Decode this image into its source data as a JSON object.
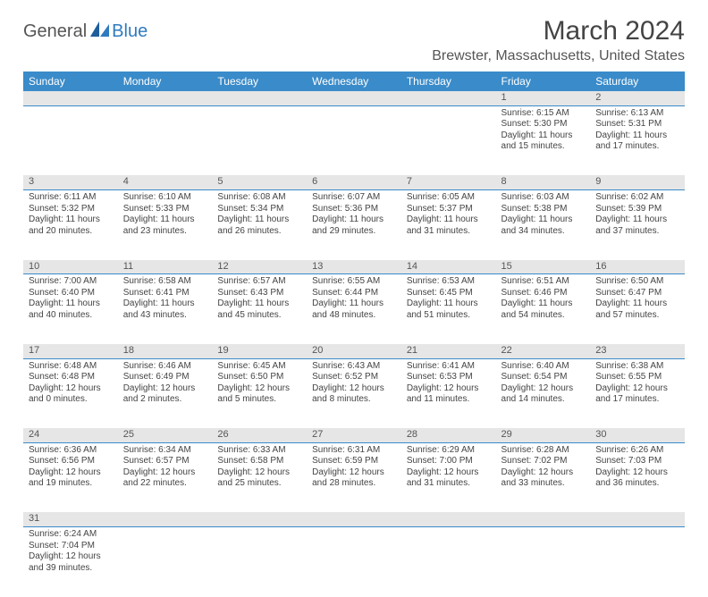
{
  "logo": {
    "general": "General",
    "blue": "Blue"
  },
  "title": "March 2024",
  "location": "Brewster, Massachusetts, United States",
  "colors": {
    "header_bg": "#3a8bc9",
    "header_text": "#ffffff",
    "daynum_bg": "#e6e6e6",
    "border": "#3a8bc9",
    "logo_blue": "#2f7bbf",
    "text": "#444444"
  },
  "day_headers": [
    "Sunday",
    "Monday",
    "Tuesday",
    "Wednesday",
    "Thursday",
    "Friday",
    "Saturday"
  ],
  "weeks": [
    [
      null,
      null,
      null,
      null,
      null,
      {
        "n": "1",
        "sr": "Sunrise: 6:15 AM",
        "ss": "Sunset: 5:30 PM",
        "dl": "Daylight: 11 hours and 15 minutes."
      },
      {
        "n": "2",
        "sr": "Sunrise: 6:13 AM",
        "ss": "Sunset: 5:31 PM",
        "dl": "Daylight: 11 hours and 17 minutes."
      }
    ],
    [
      {
        "n": "3",
        "sr": "Sunrise: 6:11 AM",
        "ss": "Sunset: 5:32 PM",
        "dl": "Daylight: 11 hours and 20 minutes."
      },
      {
        "n": "4",
        "sr": "Sunrise: 6:10 AM",
        "ss": "Sunset: 5:33 PM",
        "dl": "Daylight: 11 hours and 23 minutes."
      },
      {
        "n": "5",
        "sr": "Sunrise: 6:08 AM",
        "ss": "Sunset: 5:34 PM",
        "dl": "Daylight: 11 hours and 26 minutes."
      },
      {
        "n": "6",
        "sr": "Sunrise: 6:07 AM",
        "ss": "Sunset: 5:36 PM",
        "dl": "Daylight: 11 hours and 29 minutes."
      },
      {
        "n": "7",
        "sr": "Sunrise: 6:05 AM",
        "ss": "Sunset: 5:37 PM",
        "dl": "Daylight: 11 hours and 31 minutes."
      },
      {
        "n": "8",
        "sr": "Sunrise: 6:03 AM",
        "ss": "Sunset: 5:38 PM",
        "dl": "Daylight: 11 hours and 34 minutes."
      },
      {
        "n": "9",
        "sr": "Sunrise: 6:02 AM",
        "ss": "Sunset: 5:39 PM",
        "dl": "Daylight: 11 hours and 37 minutes."
      }
    ],
    [
      {
        "n": "10",
        "sr": "Sunrise: 7:00 AM",
        "ss": "Sunset: 6:40 PM",
        "dl": "Daylight: 11 hours and 40 minutes."
      },
      {
        "n": "11",
        "sr": "Sunrise: 6:58 AM",
        "ss": "Sunset: 6:41 PM",
        "dl": "Daylight: 11 hours and 43 minutes."
      },
      {
        "n": "12",
        "sr": "Sunrise: 6:57 AM",
        "ss": "Sunset: 6:43 PM",
        "dl": "Daylight: 11 hours and 45 minutes."
      },
      {
        "n": "13",
        "sr": "Sunrise: 6:55 AM",
        "ss": "Sunset: 6:44 PM",
        "dl": "Daylight: 11 hours and 48 minutes."
      },
      {
        "n": "14",
        "sr": "Sunrise: 6:53 AM",
        "ss": "Sunset: 6:45 PM",
        "dl": "Daylight: 11 hours and 51 minutes."
      },
      {
        "n": "15",
        "sr": "Sunrise: 6:51 AM",
        "ss": "Sunset: 6:46 PM",
        "dl": "Daylight: 11 hours and 54 minutes."
      },
      {
        "n": "16",
        "sr": "Sunrise: 6:50 AM",
        "ss": "Sunset: 6:47 PM",
        "dl": "Daylight: 11 hours and 57 minutes."
      }
    ],
    [
      {
        "n": "17",
        "sr": "Sunrise: 6:48 AM",
        "ss": "Sunset: 6:48 PM",
        "dl": "Daylight: 12 hours and 0 minutes."
      },
      {
        "n": "18",
        "sr": "Sunrise: 6:46 AM",
        "ss": "Sunset: 6:49 PM",
        "dl": "Daylight: 12 hours and 2 minutes."
      },
      {
        "n": "19",
        "sr": "Sunrise: 6:45 AM",
        "ss": "Sunset: 6:50 PM",
        "dl": "Daylight: 12 hours and 5 minutes."
      },
      {
        "n": "20",
        "sr": "Sunrise: 6:43 AM",
        "ss": "Sunset: 6:52 PM",
        "dl": "Daylight: 12 hours and 8 minutes."
      },
      {
        "n": "21",
        "sr": "Sunrise: 6:41 AM",
        "ss": "Sunset: 6:53 PM",
        "dl": "Daylight: 12 hours and 11 minutes."
      },
      {
        "n": "22",
        "sr": "Sunrise: 6:40 AM",
        "ss": "Sunset: 6:54 PM",
        "dl": "Daylight: 12 hours and 14 minutes."
      },
      {
        "n": "23",
        "sr": "Sunrise: 6:38 AM",
        "ss": "Sunset: 6:55 PM",
        "dl": "Daylight: 12 hours and 17 minutes."
      }
    ],
    [
      {
        "n": "24",
        "sr": "Sunrise: 6:36 AM",
        "ss": "Sunset: 6:56 PM",
        "dl": "Daylight: 12 hours and 19 minutes."
      },
      {
        "n": "25",
        "sr": "Sunrise: 6:34 AM",
        "ss": "Sunset: 6:57 PM",
        "dl": "Daylight: 12 hours and 22 minutes."
      },
      {
        "n": "26",
        "sr": "Sunrise: 6:33 AM",
        "ss": "Sunset: 6:58 PM",
        "dl": "Daylight: 12 hours and 25 minutes."
      },
      {
        "n": "27",
        "sr": "Sunrise: 6:31 AM",
        "ss": "Sunset: 6:59 PM",
        "dl": "Daylight: 12 hours and 28 minutes."
      },
      {
        "n": "28",
        "sr": "Sunrise: 6:29 AM",
        "ss": "Sunset: 7:00 PM",
        "dl": "Daylight: 12 hours and 31 minutes."
      },
      {
        "n": "29",
        "sr": "Sunrise: 6:28 AM",
        "ss": "Sunset: 7:02 PM",
        "dl": "Daylight: 12 hours and 33 minutes."
      },
      {
        "n": "30",
        "sr": "Sunrise: 6:26 AM",
        "ss": "Sunset: 7:03 PM",
        "dl": "Daylight: 12 hours and 36 minutes."
      }
    ],
    [
      {
        "n": "31",
        "sr": "Sunrise: 6:24 AM",
        "ss": "Sunset: 7:04 PM",
        "dl": "Daylight: 12 hours and 39 minutes."
      },
      null,
      null,
      null,
      null,
      null,
      null
    ]
  ]
}
